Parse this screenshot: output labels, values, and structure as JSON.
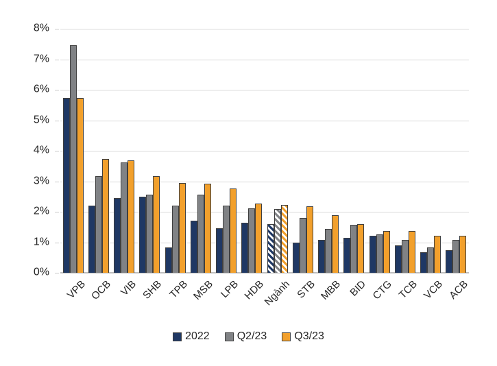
{
  "chart_data": {
    "type": "bar",
    "title": "",
    "xlabel": "",
    "ylabel": "",
    "categories": [
      "VPB",
      "OCB",
      "VIB",
      "SHB",
      "TPB",
      "MSB",
      "LPB",
      "HDB",
      "Ngành",
      "STB",
      "MBB",
      "BID",
      "CTG",
      "TCB",
      "VCB",
      "ACB"
    ],
    "series": [
      {
        "name": "2022",
        "color": "#1F3864",
        "values": [
          5.73,
          2.2,
          2.45,
          2.5,
          0.84,
          1.7,
          1.45,
          1.65,
          1.6,
          0.98,
          1.09,
          1.15,
          1.22,
          0.9,
          0.68,
          0.74
        ]
      },
      {
        "name": "Q2/23",
        "color": "#808285",
        "values": [
          7.45,
          3.18,
          3.62,
          2.56,
          2.21,
          2.56,
          2.21,
          2.12,
          2.1,
          1.79,
          1.44,
          1.58,
          1.26,
          1.07,
          0.83,
          1.07
        ]
      },
      {
        "name": "Q3/23",
        "color": "#F2A02C",
        "values": [
          5.74,
          3.73,
          3.68,
          3.18,
          2.95,
          2.92,
          2.77,
          2.26,
          2.23,
          2.19,
          1.89,
          1.6,
          1.36,
          1.38,
          1.21,
          1.21
        ]
      }
    ],
    "hatched_category": "Ngành",
    "ylim": [
      0,
      8
    ],
    "ytick_step": 1,
    "ytick_suffix": "%",
    "grid": true,
    "legend_position": "bottom"
  },
  "colors": {
    "background": "#FFFFFF",
    "gridline": "#D9D9D9",
    "axis_line": "#BFBFBF",
    "bar_border": "#3F3F3F",
    "text": "#262626"
  },
  "legend": {
    "items": [
      {
        "label": "2022"
      },
      {
        "label": "Q2/23"
      },
      {
        "label": "Q3/23"
      }
    ]
  }
}
